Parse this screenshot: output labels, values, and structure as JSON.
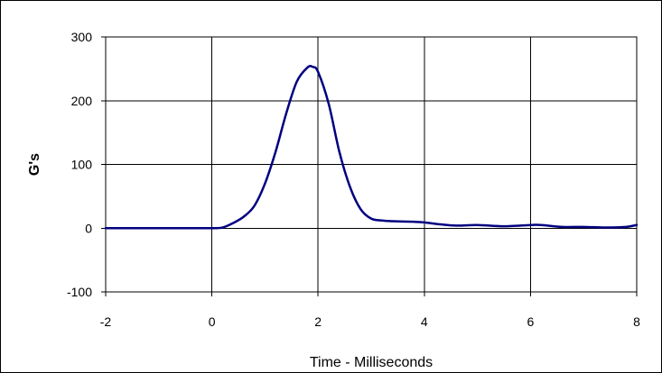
{
  "chart_data": {
    "type": "line",
    "title": "",
    "xlabel": "Time - Milliseconds",
    "ylabel": "G's",
    "xlim": [
      -2,
      8
    ],
    "ylim": [
      -100,
      300
    ],
    "xticks": [
      -2,
      0,
      2,
      4,
      6,
      8
    ],
    "yticks": [
      -100,
      0,
      100,
      200,
      300
    ],
    "grid": true,
    "legend": "none",
    "series": [
      {
        "color": "#000080",
        "x": [
          -2,
          -1.5,
          -1,
          -0.5,
          0,
          0.2,
          0.4,
          0.6,
          0.8,
          1.0,
          1.2,
          1.4,
          1.6,
          1.8,
          1.9,
          2.0,
          2.2,
          2.4,
          2.6,
          2.8,
          3.0,
          3.2,
          3.4,
          3.8,
          4.0,
          4.3,
          4.6,
          5.0,
          5.5,
          6.0,
          6.2,
          6.6,
          7.0,
          7.4,
          7.8,
          8.0
        ],
        "y": [
          0,
          0,
          0,
          0,
          0,
          1,
          8,
          18,
          35,
          70,
          120,
          180,
          230,
          252,
          253,
          245,
          195,
          120,
          65,
          30,
          15,
          12,
          11,
          10,
          9,
          6,
          4,
          5,
          3,
          5,
          5,
          2,
          2,
          1,
          2,
          5
        ]
      }
    ]
  }
}
